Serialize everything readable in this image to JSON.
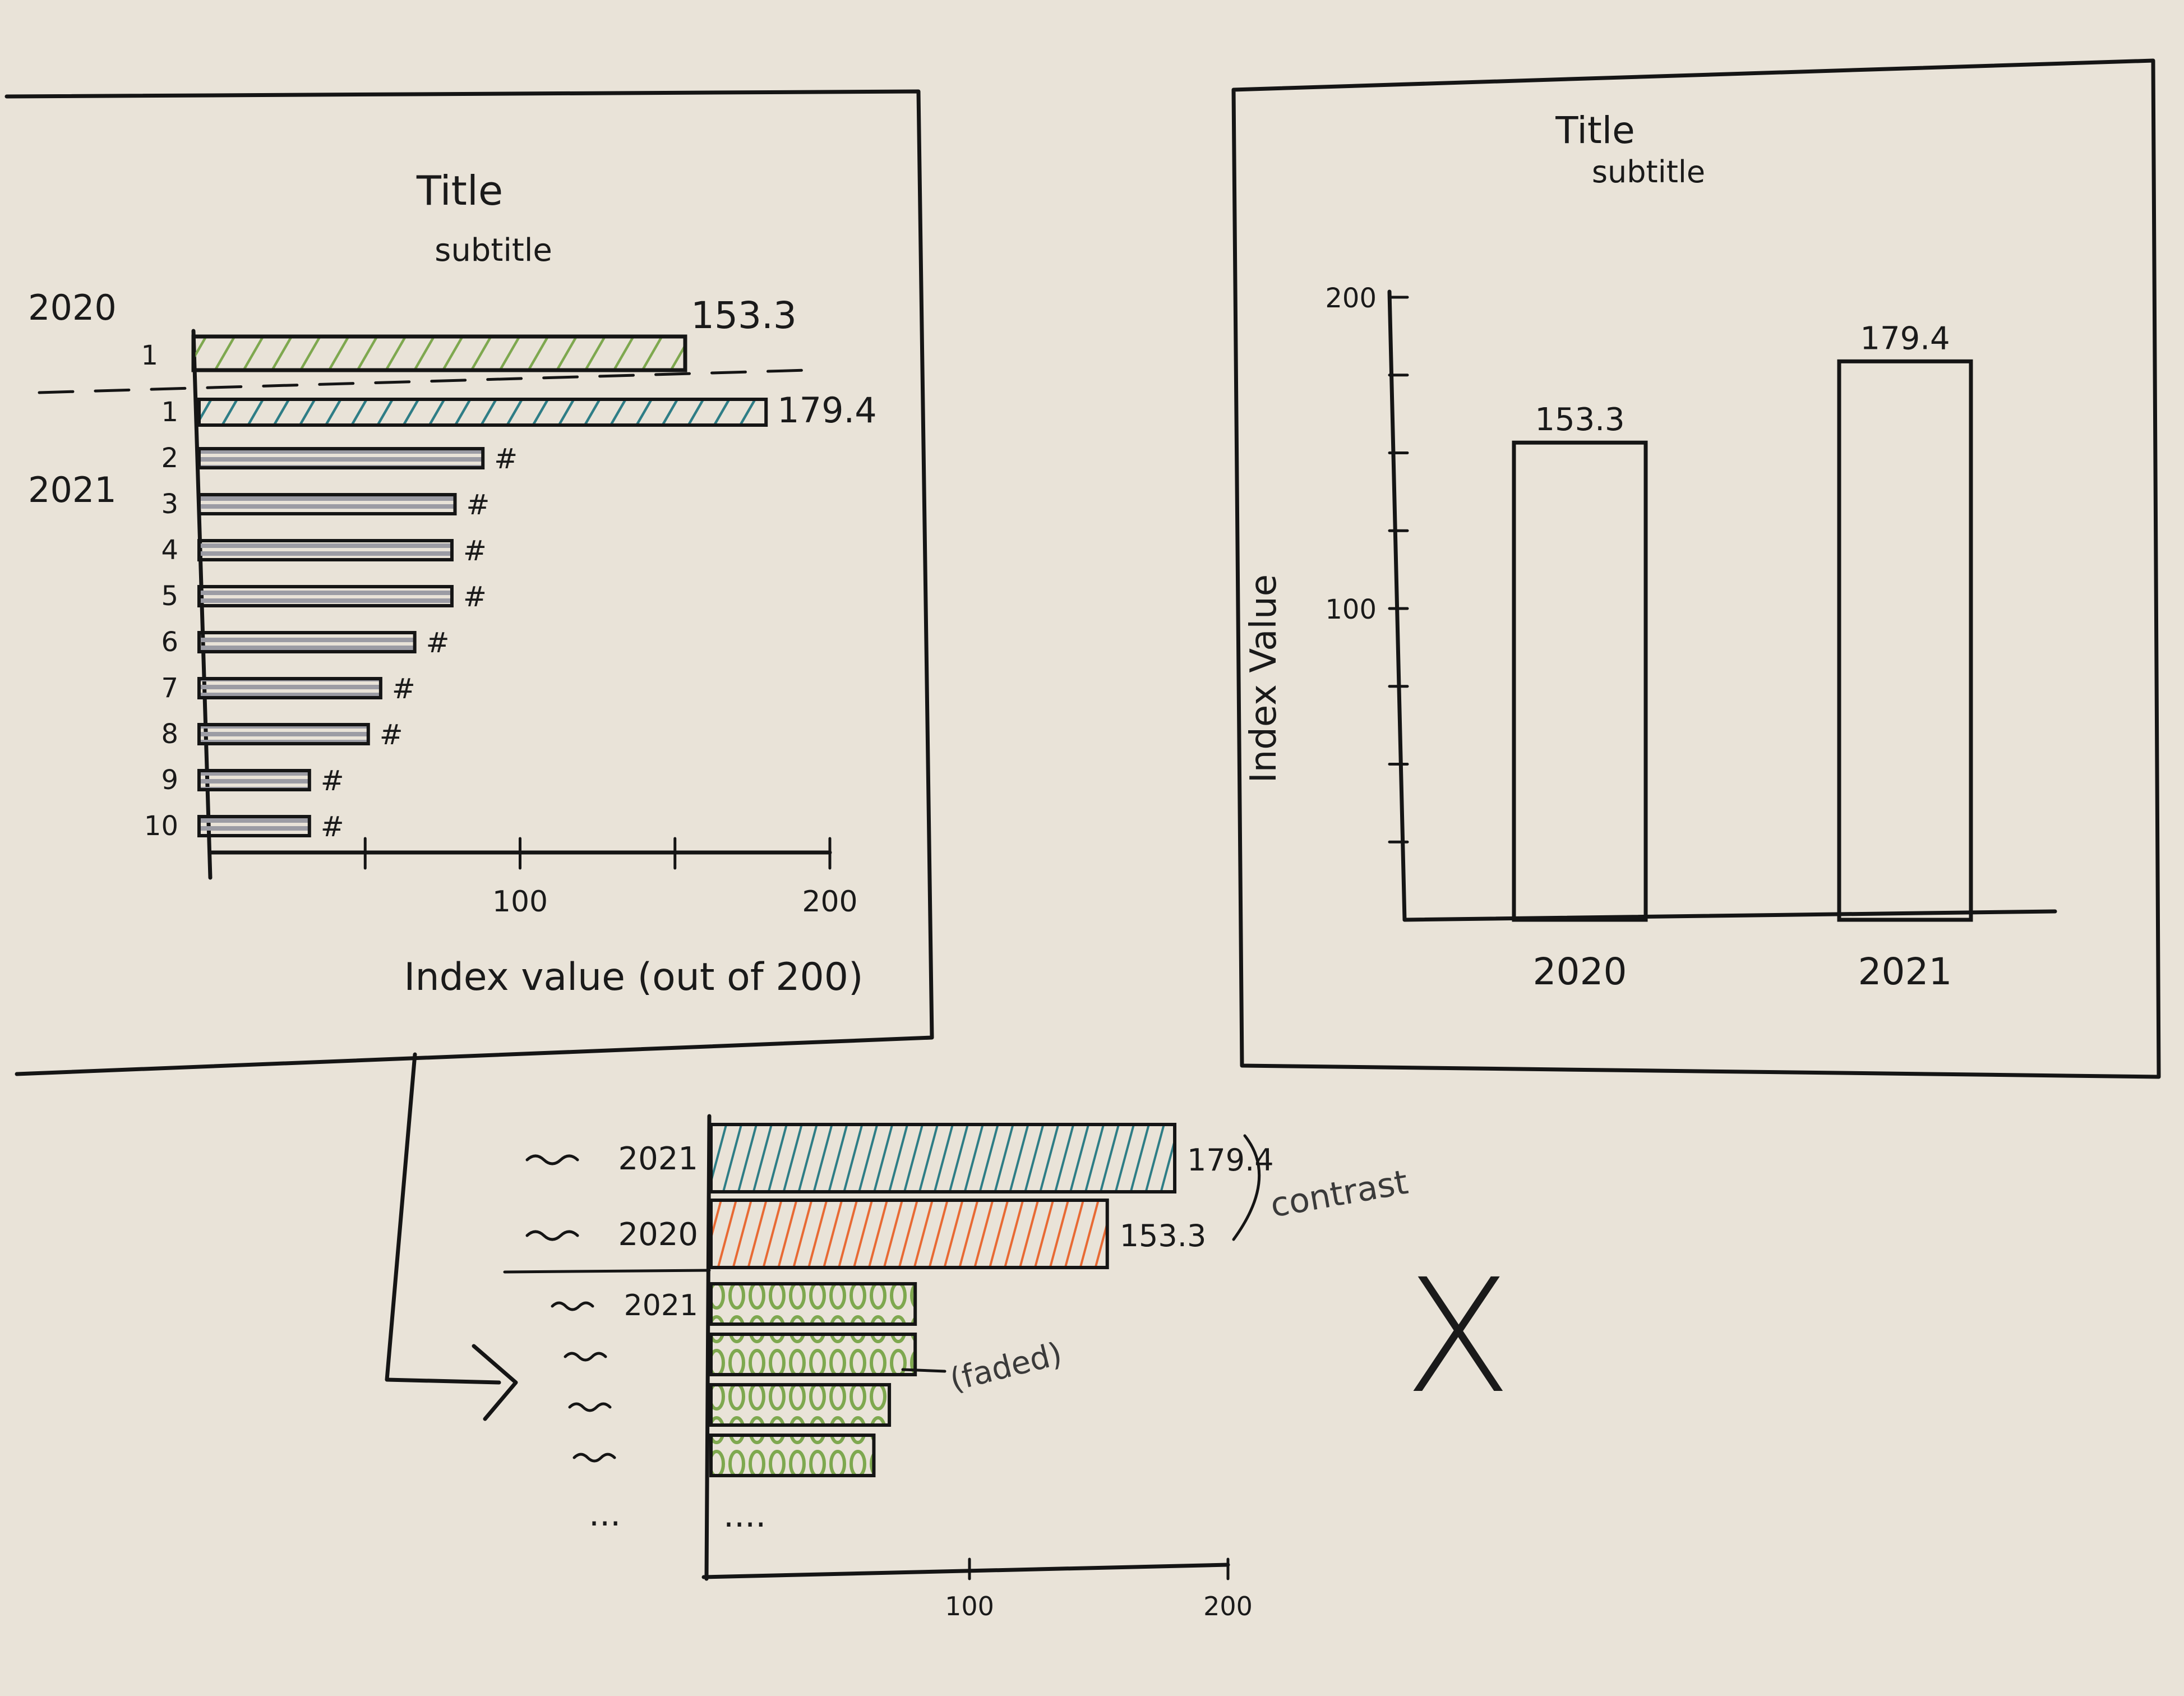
{
  "sketch": {
    "chart_data": [
      {
        "type": "bar",
        "orientation": "horizontal",
        "title": "Title",
        "subtitle": "subtitle",
        "xlabel": "Index value (out of 200)",
        "xlim": [
          0,
          200
        ],
        "ticks": [
          "100",
          "200"
        ],
        "top_group": {
          "label": "2020",
          "rank": "1",
          "value": 153.3,
          "value_label": "153.3",
          "color": "#7ea84f"
        },
        "lower_group": {
          "label": "2021",
          "ranks": [
            "1",
            "2",
            "3",
            "4",
            "5",
            "6",
            "7",
            "8",
            "9",
            "10"
          ],
          "values": [
            179.4,
            88,
            79,
            78,
            78,
            66,
            55,
            51,
            32,
            32
          ],
          "value_labels": [
            "179.4",
            "#",
            "#",
            "#",
            "#",
            "#",
            "#",
            "#",
            "#",
            "#"
          ],
          "colors": [
            "#2e7d86",
            "#9c9ca4",
            "#9c9ca4",
            "#9c9ca4",
            "#9c9ca4",
            "#9c9ca4",
            "#9c9ca4",
            "#9c9ca4",
            "#9c9ca4",
            "#9c9ca4"
          ]
        }
      },
      {
        "type": "bar",
        "orientation": "vertical",
        "title": "Title",
        "subtitle": "subtitle",
        "ylabel": "Index Value",
        "ylim": [
          0,
          200
        ],
        "yticks": [
          "100",
          "200"
        ],
        "categories": [
          "2020",
          "2021"
        ],
        "values": [
          153.3,
          179.4
        ],
        "value_labels": [
          "153.3",
          "179.4"
        ]
      },
      {
        "type": "bar",
        "orientation": "horizontal",
        "xlim": [
          0,
          200
        ],
        "ticks": [
          "100",
          "200"
        ],
        "highlight": [
          {
            "label": "2021",
            "value": 179.4,
            "value_label": "179.4",
            "color": "#2e7d86"
          },
          {
            "label": "2020",
            "value": 153.3,
            "value_label": "153.3",
            "color": "#e86a34"
          }
        ],
        "others": {
          "label": "2021",
          "values": [
            79,
            79,
            69,
            63
          ],
          "color": "#7ea84f"
        },
        "continuation": "....",
        "row_ellipsis": "...",
        "annotations": [
          "contrast",
          "(faded)"
        ]
      }
    ],
    "reject_mark": "X"
  }
}
